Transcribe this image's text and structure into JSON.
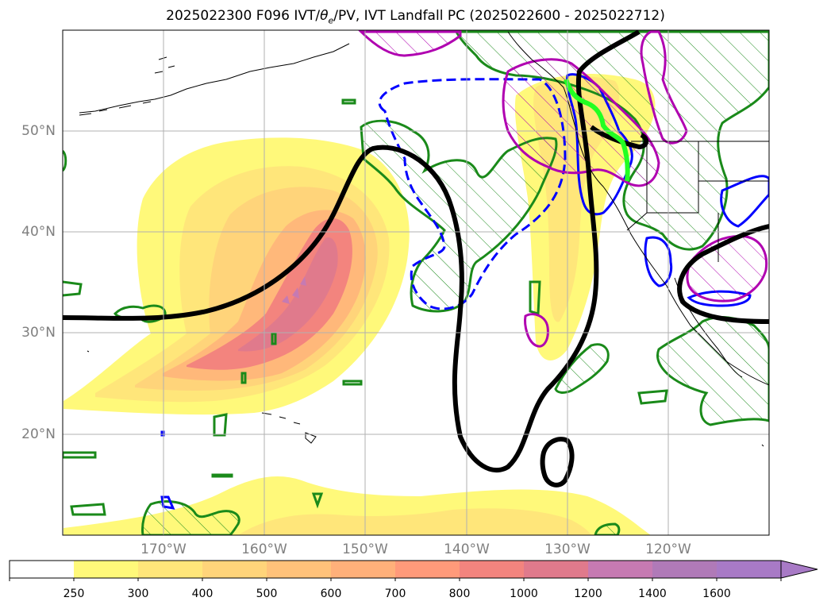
{
  "title": {
    "prefix": "2025022300 F096 IVT/",
    "theta": "θ",
    "sub": "e",
    "suffix": "/PV, IVT Landfall PC (2025022600 - 2025022712)"
  },
  "map": {
    "lat_labels": [
      "50°N",
      "40°N",
      "30°N",
      "20°N"
    ],
    "lon_labels": [
      "170°W",
      "160°W",
      "150°W",
      "140°W",
      "130°W",
      "120°W"
    ],
    "fill_colors": [
      "#fff97a",
      "#ffe67a",
      "#ffd47a",
      "#ffb87a",
      "#ff9a7a",
      "#f3847e",
      "#e07a8c",
      "#c67ab2",
      "#a87ac6"
    ],
    "line_colors": {
      "theta_e": "#000000",
      "pv_green": "#1a8a1a",
      "pv_blue": "#0000ff",
      "pv_magenta": "#b000b0",
      "landfall": "#22ff22"
    }
  },
  "colorbar": {
    "ticks": [
      "250",
      "300",
      "400",
      "500",
      "600",
      "700",
      "800",
      "1000",
      "1200",
      "1400",
      "1600"
    ],
    "colors": [
      "#ffffff",
      "#fff97a",
      "#ffe67a",
      "#ffd47a",
      "#ffc27a",
      "#ffb07a",
      "#ff9a7a",
      "#f3847e",
      "#e07a8c",
      "#c67ab2",
      "#b07ab8",
      "#a87ac6"
    ]
  }
}
